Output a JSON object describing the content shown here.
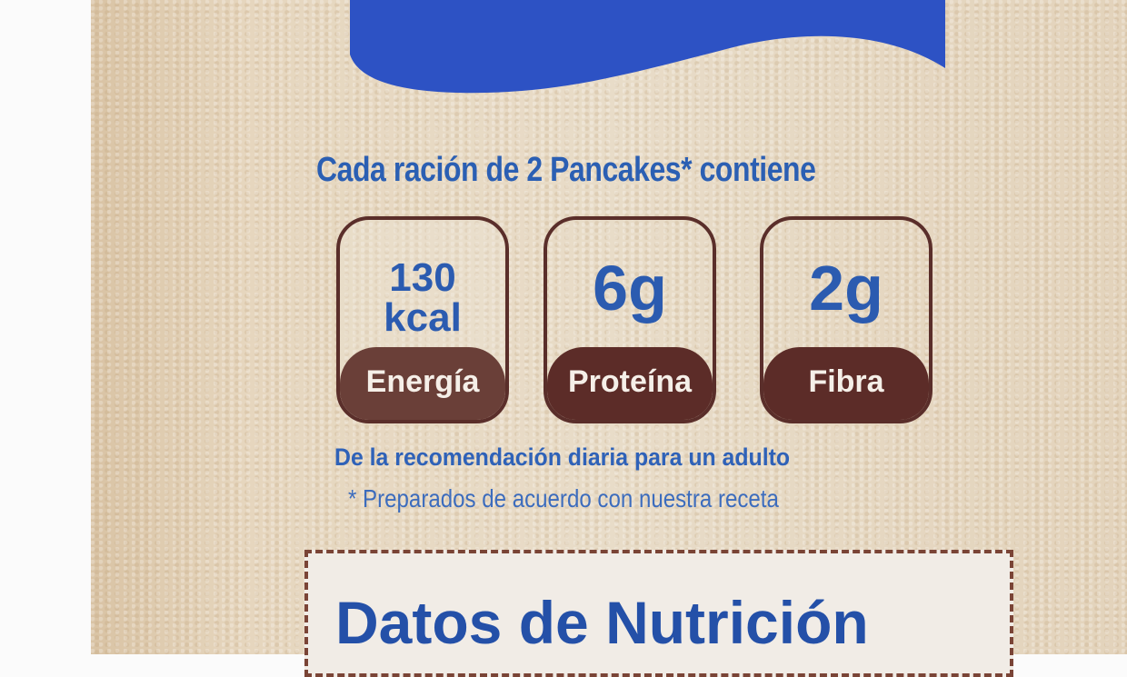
{
  "colors": {
    "blue": "#2b5fb3",
    "brown": "#5c2c28",
    "kraft": "#e6d6be",
    "banner": "#2d52c4"
  },
  "headline": "Cada ración de 2 Pancakes* contiene",
  "badges": [
    {
      "value": "130",
      "unit": "kcal",
      "label": "Energía"
    },
    {
      "value": "6g",
      "label": "Proteína"
    },
    {
      "value": "2g",
      "label": "Fibra"
    }
  ],
  "recommendation": "De la recomendación diaria para un adulto",
  "footnote": "* Preparados de acuerdo con nuestra receta",
  "facts_title": "Datos de Nutrición"
}
